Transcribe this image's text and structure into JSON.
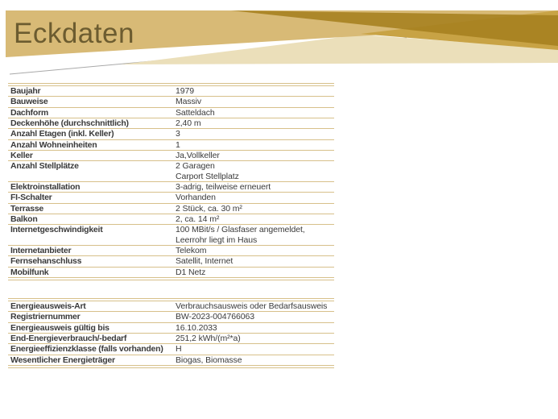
{
  "slide": {
    "title": "Eckdaten"
  },
  "theme": {
    "band_tan": "#d8ba76",
    "gold_dark": "#b38e2a",
    "gold_medium": "#c8a345",
    "cream": "#ebdfba",
    "title_color": "#6c5c30",
    "table_line": "#d7c08a",
    "text_color": "#3a3a3a",
    "divider_gray": "#a9a9a9"
  },
  "facts_table": {
    "rows": [
      {
        "label": "Baujahr",
        "values": [
          "1979"
        ]
      },
      {
        "label": "Bauweise",
        "values": [
          "Massiv"
        ]
      },
      {
        "label": "Dachform",
        "values": [
          "Satteldach"
        ]
      },
      {
        "label": "Deckenhöhe (durchschnittlich)",
        "values": [
          "2,40 m"
        ]
      },
      {
        "label": "Anzahl Etagen (inkl. Keller)",
        "values": [
          "3"
        ]
      },
      {
        "label": "Anzahl Wohneinheiten",
        "values": [
          "1"
        ]
      },
      {
        "label": "Keller",
        "values": [
          "Ja,Vollkeller"
        ]
      },
      {
        "label": "Anzahl Stellplätze",
        "values": [
          "2 Garagen",
          "Carport Stellplatz"
        ]
      },
      {
        "label": "Elektroinstallation",
        "values": [
          "3-adrig, teilweise erneuert"
        ]
      },
      {
        "label": "FI-Schalter",
        "values": [
          "Vorhanden"
        ]
      },
      {
        "label": "Terrasse",
        "values": [
          "2 Stück, ca. 30 m²"
        ]
      },
      {
        "label": "Balkon",
        "values": [
          "2, ca. 14 m²"
        ]
      },
      {
        "label": "Internetgeschwindigkeit",
        "values": [
          "100 MBit/s / Glasfaser angemeldet,",
          "Leerrohr liegt im Haus"
        ]
      },
      {
        "label": "Internetanbieter",
        "values": [
          "Telekom"
        ]
      },
      {
        "label": "Fernsehanschluss",
        "values": [
          "Satellit, Internet"
        ]
      },
      {
        "label": "Mobilfunk",
        "values": [
          "D1 Netz"
        ]
      }
    ]
  },
  "energy_table": {
    "rows": [
      {
        "label": "Energieausweis-Art",
        "values": [
          "Verbrauchsausweis oder Bedarfsausweis"
        ]
      },
      {
        "label": "Registriernummer",
        "values": [
          "BW-2023-004766063"
        ]
      },
      {
        "label": "Energieausweis gültig bis",
        "values": [
          "16.10.2033"
        ]
      },
      {
        "label": "End-Energieverbrauch/-bedarf",
        "values": [
          "251,2 kWh/(m²*a)"
        ]
      },
      {
        "label": "Energieeffizienzklasse (falls vorhanden)",
        "values": [
          "H"
        ]
      },
      {
        "label": "Wesentlicher Energieträger",
        "values": [
          "Biogas, Biomasse"
        ]
      }
    ]
  }
}
